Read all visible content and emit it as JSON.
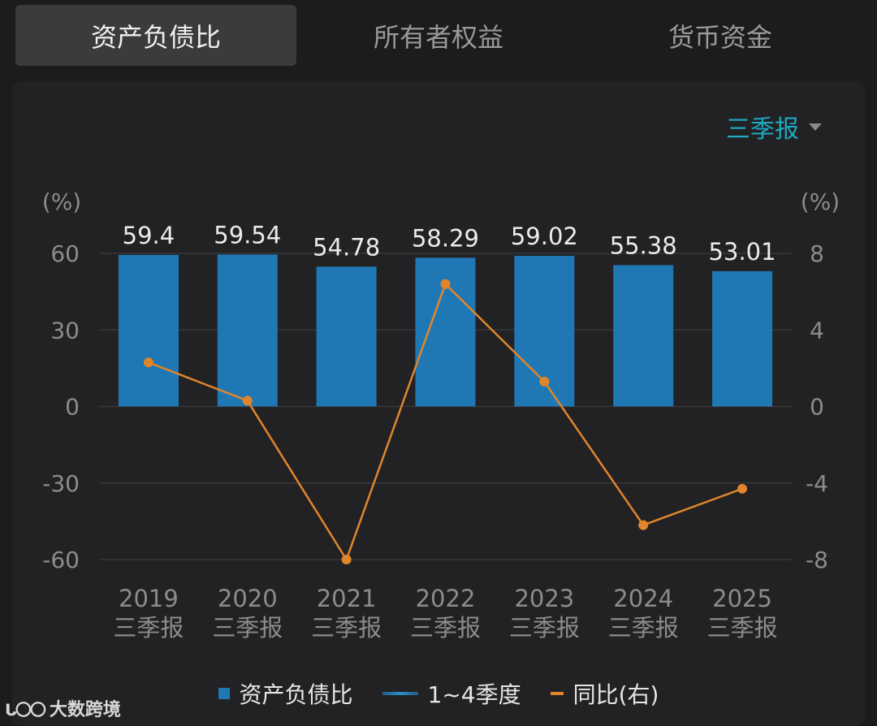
{
  "tabs": [
    {
      "label": "资产负债比",
      "active": true
    },
    {
      "label": "所有者权益",
      "active": false
    },
    {
      "label": "货币资金",
      "active": false
    }
  ],
  "period_selector": {
    "label": "三季报"
  },
  "legend": {
    "bar_label": "资产负债比",
    "line_label": "1~4季度",
    "yoy_label": "同比(右)"
  },
  "watermark": {
    "logo": "ᒐ〇〇",
    "text": "大数跨境"
  },
  "colors": {
    "bar": "#1f78b4",
    "yoy": "#e0852b",
    "accent": "#1fa8c2"
  },
  "chart_data": {
    "type": "bar",
    "categories": [
      "2019",
      "2020",
      "2021",
      "2022",
      "2023",
      "2024",
      "2025"
    ],
    "category_sublabel": "三季报",
    "series": [
      {
        "name": "资产负债比",
        "type": "bar",
        "axis": "left",
        "values": [
          59.4,
          59.54,
          54.78,
          58.29,
          59.02,
          55.38,
          53.01
        ],
        "labels": [
          "59.4",
          "59.54",
          "54.78",
          "58.29",
          "59.02",
          "55.38",
          "53.01"
        ]
      },
      {
        "name": "同比(右)",
        "type": "line",
        "axis": "right",
        "values": [
          2.3,
          0.3,
          -8.0,
          6.4,
          1.3,
          -6.2,
          -4.3
        ]
      }
    ],
    "left_axis": {
      "unit": "(%)",
      "range": [
        -60,
        60
      ],
      "ticks": [
        60,
        30,
        0,
        -30,
        -60
      ],
      "tick_labels": [
        "60",
        "30",
        "0",
        "-30",
        "-60"
      ]
    },
    "right_axis": {
      "unit": "(%)",
      "range": [
        -8,
        8
      ],
      "ticks": [
        8,
        4,
        0,
        -4,
        -8
      ],
      "tick_labels": [
        "8",
        "4",
        "0",
        "-4",
        "-8"
      ]
    }
  }
}
